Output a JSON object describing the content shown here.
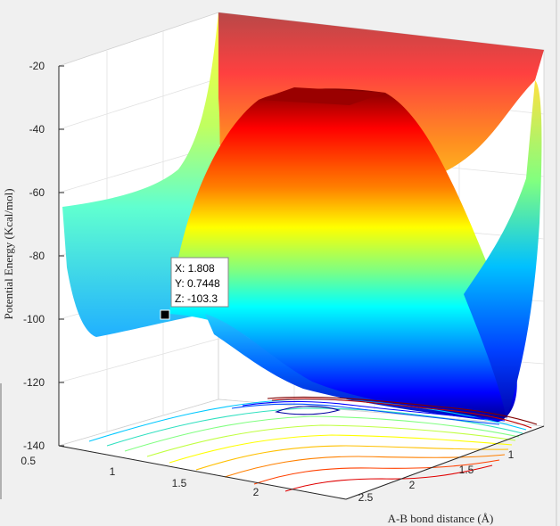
{
  "chart_data": {
    "type": "surface",
    "title": "",
    "xlabel": "A-B bond distance (Å)",
    "ylabel": "",
    "zlabel": "Potential Energy (Kcal/mol)",
    "colormap": "jet",
    "grid": true,
    "x_ticks": [
      0.5,
      1,
      1.5,
      2,
      2.5
    ],
    "y_ticks": [
      1,
      1.5,
      2
    ],
    "z_ticks": [
      -20,
      -40,
      -60,
      -80,
      -100,
      -120,
      -140
    ],
    "xlim": [
      0.5,
      2.5
    ],
    "ylim": [
      0.5,
      2.5
    ],
    "zlim": [
      -140,
      -20
    ],
    "datatip": {
      "x_label": "X: 1.808",
      "y_label": "Y: 0.7448",
      "z_label": "Z: -103.3",
      "x": 1.808,
      "y": 0.7448,
      "z": -103.3
    }
  }
}
